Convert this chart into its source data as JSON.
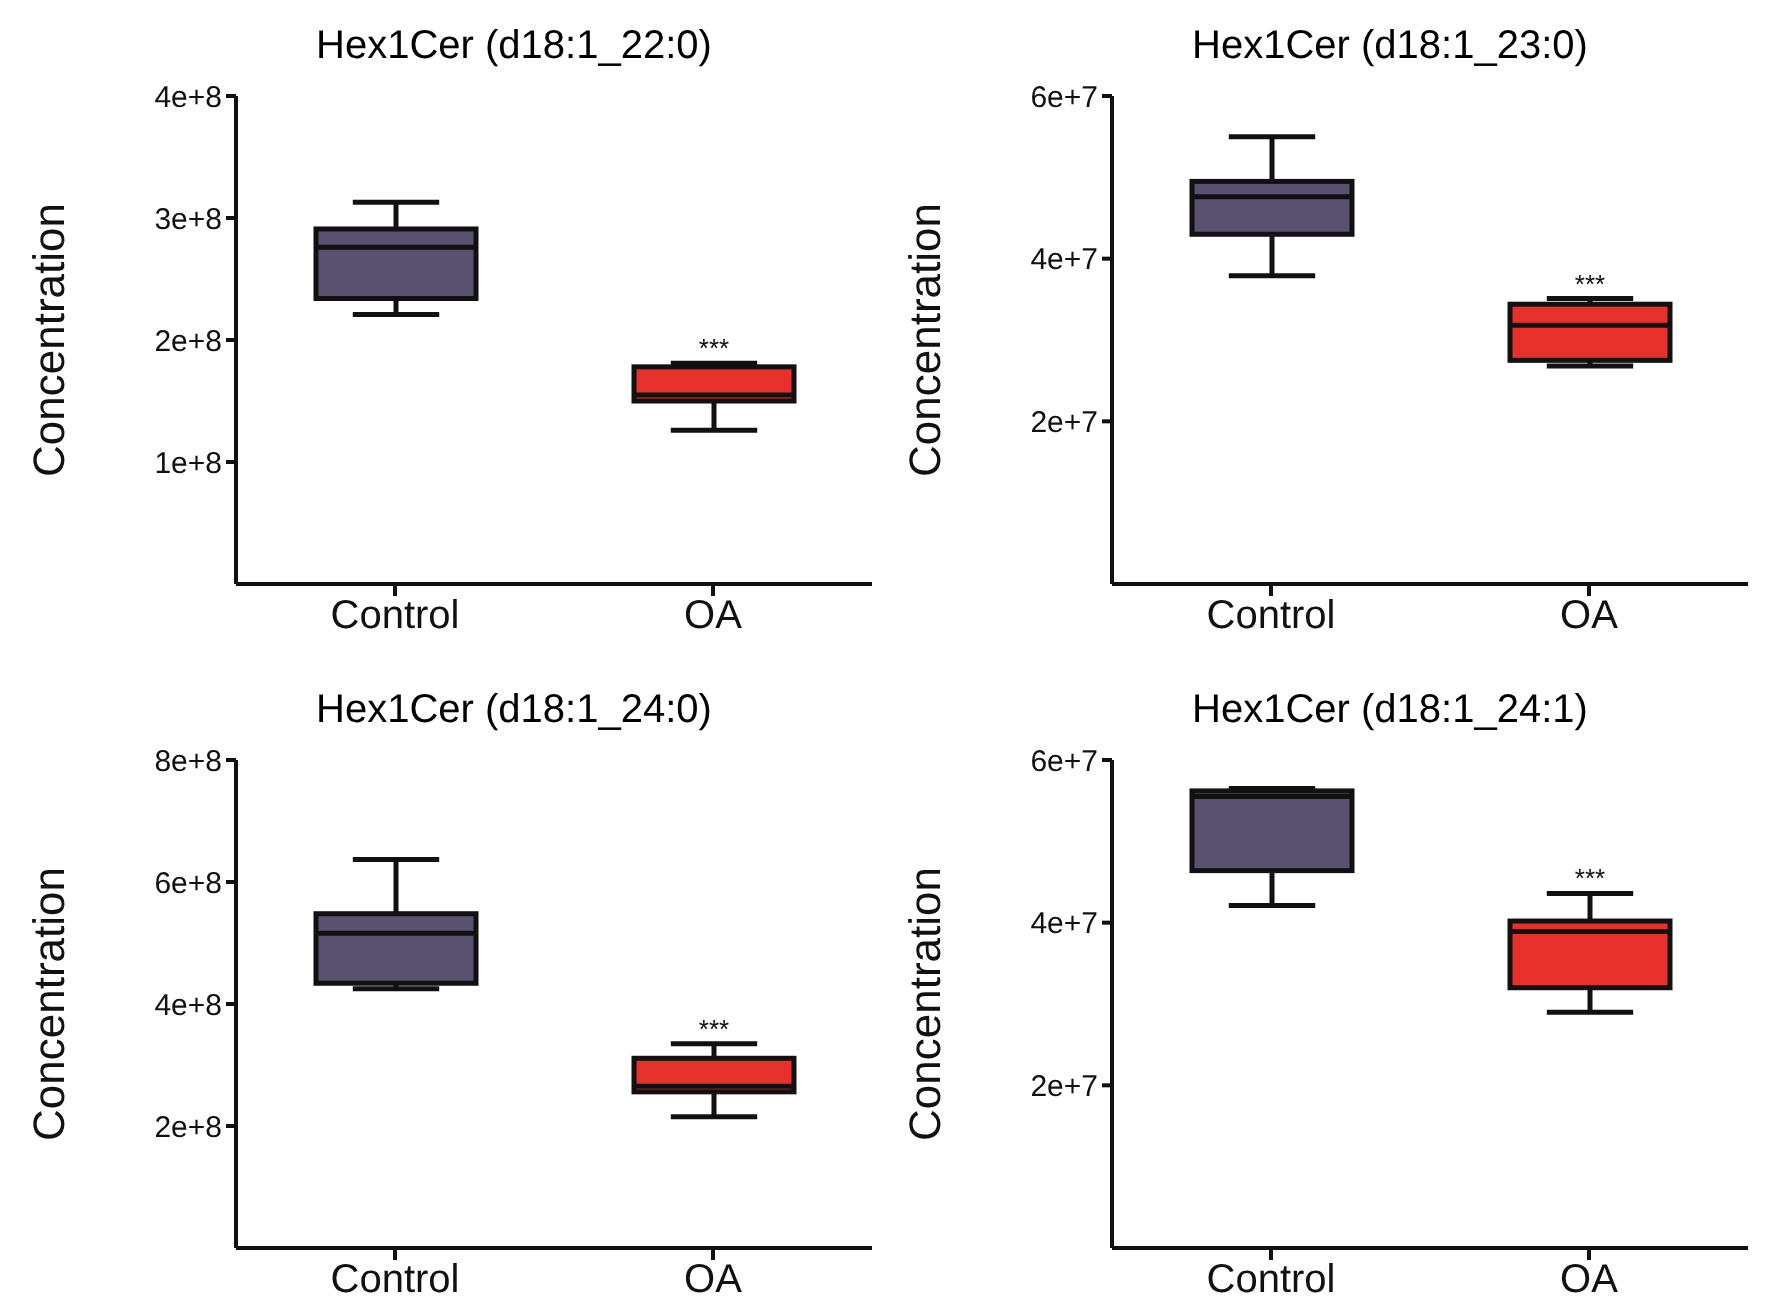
{
  "chart_data": [
    {
      "type": "box",
      "title": "Hex1Cer (d18:1_22:0)",
      "ylabel": "Concentration",
      "categories": [
        "Control",
        "OA"
      ],
      "colors": [
        "#5a5070",
        "#e8302c"
      ],
      "boxes": [
        {
          "low": 221000000.0,
          "q1": 234000000.0,
          "median": 276000000.0,
          "q3": 291000000.0,
          "high": 313000000.0
        },
        {
          "low": 126000000.0,
          "q1": 150000000.0,
          "median": 155000000.0,
          "q3": 178000000.0,
          "high": 181000000.0
        }
      ],
      "ylim": [
        0,
        400000000.0
      ],
      "yticks": [
        {
          "value": 100000000.0,
          "label": "1e+8"
        },
        {
          "value": 200000000.0,
          "label": "2e+8"
        },
        {
          "value": 300000000.0,
          "label": "3e+8"
        },
        {
          "value": 400000000.0,
          "label": "4e+8"
        }
      ],
      "annotations": [
        {
          "text": "***",
          "x": "OA",
          "y": 181000000.0
        }
      ]
    },
    {
      "type": "box",
      "title": "Hex1Cer (d18:1_23:0)",
      "ylabel": "Concentration",
      "categories": [
        "Control",
        "OA"
      ],
      "colors": [
        "#5a5070",
        "#e8302c"
      ],
      "boxes": [
        {
          "low": 37900000.0,
          "q1": 43000000.0,
          "median": 47600000.0,
          "q3": 49500000.0,
          "high": 55000000.0
        },
        {
          "low": 26800000.0,
          "q1": 27500000.0,
          "median": 31800000.0,
          "q3": 34400000.0,
          "high": 35100000.0
        }
      ],
      "ylim": [
        0,
        60000000.0
      ],
      "yticks": [
        {
          "value": 20000000.0,
          "label": "2e+7"
        },
        {
          "value": 40000000.0,
          "label": "4e+7"
        },
        {
          "value": 60000000.0,
          "label": "6e+7"
        }
      ],
      "annotations": [
        {
          "text": "***",
          "x": "OA",
          "y": 35100000.0
        }
      ]
    },
    {
      "type": "box",
      "title": "Hex1Cer (d18:1_24:0)",
      "ylabel": "Concentration",
      "categories": [
        "Control",
        "OA"
      ],
      "colors": [
        "#5a5070",
        "#e8302c"
      ],
      "boxes": [
        {
          "low": 425000000.0,
          "q1": 434000000.0,
          "median": 516000000.0,
          "q3": 548000000.0,
          "high": 637000000.0
        },
        {
          "low": 215000000.0,
          "q1": 256000000.0,
          "median": 265000000.0,
          "q3": 311000000.0,
          "high": 335000000.0
        }
      ],
      "ylim": [
        0,
        800000000.0
      ],
      "yticks": [
        {
          "value": 200000000.0,
          "label": "2e+8"
        },
        {
          "value": 400000000.0,
          "label": "4e+8"
        },
        {
          "value": 600000000.0,
          "label": "6e+8"
        },
        {
          "value": 800000000.0,
          "label": "8e+8"
        }
      ],
      "annotations": [
        {
          "text": "***",
          "x": "OA",
          "y": 335000000.0
        }
      ]
    },
    {
      "type": "box",
      "title": "Hex1Cer (d18:1_24:1)",
      "ylabel": "Concentration",
      "categories": [
        "Control",
        "OA"
      ],
      "colors": [
        "#5a5070",
        "#e8302c"
      ],
      "boxes": [
        {
          "low": 42100000.0,
          "q1": 46400000.0,
          "median": 55500000.0,
          "q3": 56200000.0,
          "high": 56500000.0
        },
        {
          "low": 29000000.0,
          "q1": 32000000.0,
          "median": 38900000.0,
          "q3": 40200000.0,
          "high": 43600000.0
        }
      ],
      "ylim": [
        0,
        60000000.0
      ],
      "yticks": [
        {
          "value": 20000000.0,
          "label": "2e+7"
        },
        {
          "value": 40000000.0,
          "label": "4e+7"
        },
        {
          "value": 60000000.0,
          "label": "6e+7"
        }
      ],
      "annotations": [
        {
          "text": "***",
          "x": "OA",
          "y": 43600000.0
        }
      ]
    }
  ]
}
